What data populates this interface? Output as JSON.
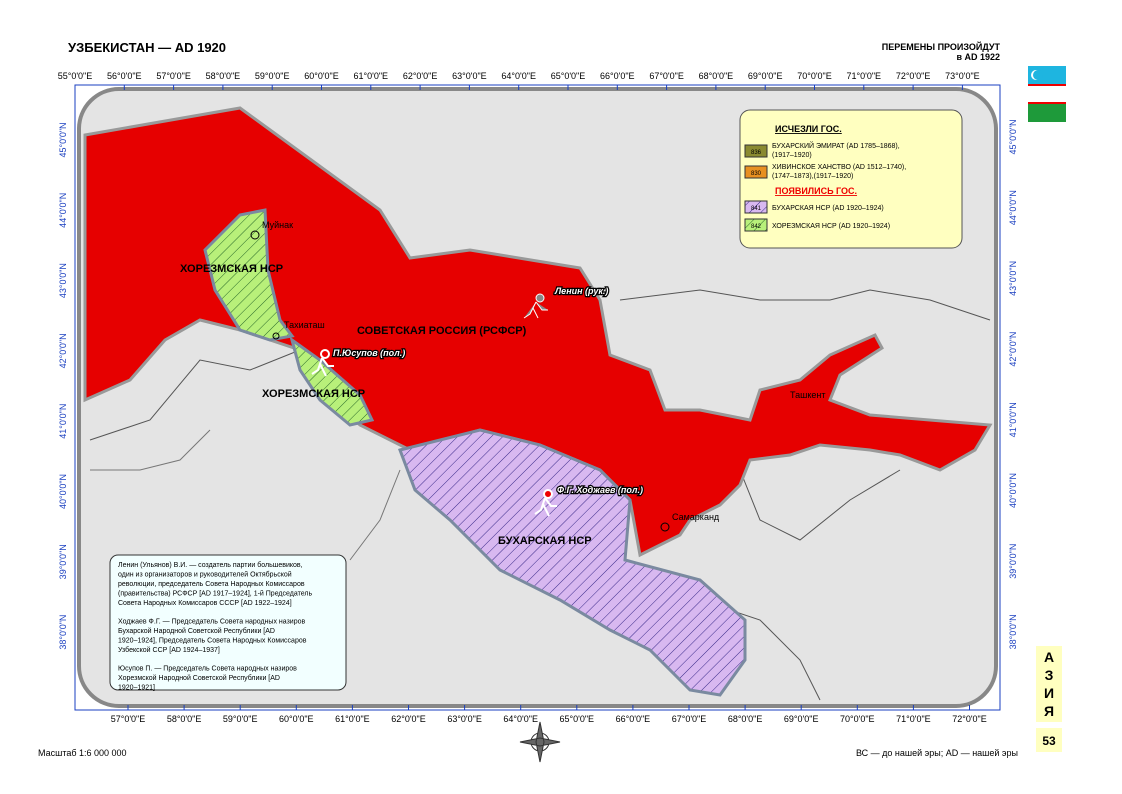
{
  "header": {
    "title": "УЗБЕКИСТАН — AD 1920",
    "note_line1": "ПЕРЕМЕНЫ ПРОИЗОЙДУТ",
    "note_line2": "в AD 1922"
  },
  "axes": {
    "top_lon": [
      "55°0'0\"E",
      "56°0'0\"E",
      "57°0'0\"E",
      "58°0'0\"E",
      "59°0'0\"E",
      "60°0'0\"E",
      "61°0'0\"E",
      "62°0'0\"E",
      "63°0'0\"E",
      "64°0'0\"E",
      "65°0'0\"E",
      "66°0'0\"E",
      "67°0'0\"E",
      "68°0'0\"E",
      "69°0'0\"E",
      "70°0'0\"E",
      "71°0'0\"E",
      "72°0'0\"E",
      "73°0'0\"E"
    ],
    "bottom_lon": [
      "57°0'0\"E",
      "58°0'0\"E",
      "59°0'0\"E",
      "60°0'0\"E",
      "61°0'0\"E",
      "62°0'0\"E",
      "63°0'0\"E",
      "64°0'0\"E",
      "65°0'0\"E",
      "66°0'0\"E",
      "67°0'0\"E",
      "68°0'0\"E",
      "69°0'0\"E",
      "70°0'0\"E",
      "71°0'0\"E",
      "72°0'0\"E"
    ],
    "left_lat": [
      "45°0'0\"N",
      "44°0'0\"N",
      "43°0'0\"N",
      "42°0'0\"N",
      "41°0'0\"N",
      "40°0'0\"N",
      "39°0'0\"N",
      "38°0'0\"N"
    ],
    "right_lat": [
      "45°0'0\"N",
      "44°0'0\"N",
      "43°0'0\"N",
      "42°0'0\"N",
      "41°0'0\"N",
      "40°0'0\"N",
      "39°0'0\"N",
      "38°0'0\"N"
    ]
  },
  "legend": {
    "heading_gone": "ИСЧЕЗЛИ ГОС.",
    "gone": [
      {
        "code": "836",
        "line1": "БУХАРСКИЙ ЭМИРАТ (AD 1785–1868),",
        "line2": "(1917–1920)"
      },
      {
        "code": "830",
        "line1": "ХИВИНСКОЕ ХАНСТВО (AD 1512–1740),",
        "line2": "(1747–1873),(1917–1920)"
      }
    ],
    "heading_new": "ПОЯВИЛИСЬ ГОС.",
    "new": [
      {
        "code": "841",
        "line1": "БУХАРСКАЯ НСР (AD 1920–1924)"
      },
      {
        "code": "842",
        "line1": "ХОРЕЗМСКАЯ НСР (AD 1920–1924)"
      }
    ]
  },
  "regions": {
    "khorezm_north": "ХОРЕЗМСКАЯ НСР",
    "khorezm_south": "ХОРЕЗМСКАЯ НСР",
    "rsfsr": "СОВЕТСКАЯ РОССИЯ (РСФСР)",
    "bukhara": "БУХАРСКАЯ НСР"
  },
  "cities": {
    "muynak": "Муйнак",
    "takhiatash": "Тахиаташ",
    "tashkent": "Ташкент",
    "samarkand": "Самарканд"
  },
  "persons": {
    "lenin": "Ленин (рук.)",
    "yusupov": "П.Юсупов (пол.)",
    "khodzhaev": "Ф.Г. Ходжаев (пол.)"
  },
  "notes": [
    [
      "Ленин (Ульянов) В.И. — создатель партии большевиков,",
      "один из организаторов и руководителей Октябрьской",
      "революции, председатель Совета Народных Комиссаров",
      "(правительства) РСФСР [AD 1917–1924], 1-й Председатель",
      "Совета Народных Комиссаров СССР [AD 1922–1924]"
    ],
    [
      "Ходжаев Ф.Г. — Председатель Совета народных назиров",
      "Бухарской Народной Советской Республики [AD",
      "1920–1924], Председатель Совета Народных Комиссаров",
      "Узбекской ССР [AD 1924–1937]"
    ],
    [
      "Юсупов П. — Председатель Совета народных назиров",
      "Хорезмской Народной Советской Республики [AD",
      "1920–1921]"
    ]
  ],
  "footer": {
    "scale": "Масштаб 1:6 000 000",
    "era": "ВС — до нашей эры; AD — нашей эры",
    "page": "53"
  },
  "side_tab": [
    "А",
    "З",
    "И",
    "Я"
  ]
}
